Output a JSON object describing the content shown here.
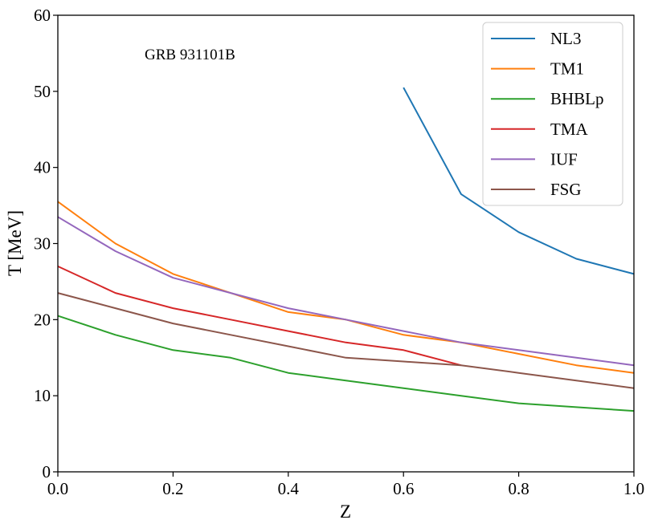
{
  "chart_data": {
    "type": "line",
    "title": "",
    "annotation": "GRB 931101B",
    "xlabel": "Z",
    "ylabel": "T [MeV]",
    "xlim": [
      0.0,
      1.0
    ],
    "ylim": [
      0,
      60
    ],
    "xticks": [
      "0.0",
      "0.2",
      "0.4",
      "0.6",
      "0.8",
      "1.0"
    ],
    "yticks": [
      "0",
      "10",
      "20",
      "30",
      "40",
      "50",
      "60"
    ],
    "grid": false,
    "legend_position": "top-right",
    "series": [
      {
        "name": "NL3",
        "color": "#1f77b4",
        "x": [
          0.6,
          0.7,
          0.8,
          0.9,
          1.0
        ],
        "y": [
          50.5,
          36.5,
          31.5,
          28.0,
          26.0
        ]
      },
      {
        "name": "TM1",
        "color": "#ff7f0e",
        "x": [
          0.0,
          0.1,
          0.2,
          0.3,
          0.4,
          0.5,
          0.6,
          0.7,
          0.8,
          0.9,
          1.0
        ],
        "y": [
          35.5,
          30.0,
          26.0,
          23.5,
          21.0,
          20.0,
          18.0,
          17.0,
          15.5,
          14.0,
          13.0
        ]
      },
      {
        "name": "BHBLp",
        "color": "#2ca02c",
        "x": [
          0.0,
          0.1,
          0.2,
          0.3,
          0.4,
          0.5,
          0.6,
          0.7,
          0.8,
          0.9,
          1.0
        ],
        "y": [
          20.5,
          18.0,
          16.0,
          15.0,
          13.0,
          12.0,
          11.0,
          10.0,
          9.0,
          8.5,
          8.0
        ]
      },
      {
        "name": "TMA",
        "color": "#d62728",
        "x": [
          0.0,
          0.1,
          0.2,
          0.3,
          0.4,
          0.5,
          0.6,
          0.7
        ],
        "y": [
          27.0,
          23.5,
          21.5,
          20.0,
          18.5,
          17.0,
          16.0,
          14.0
        ]
      },
      {
        "name": "IUF",
        "color": "#9467bd",
        "x": [
          0.0,
          0.1,
          0.2,
          0.3,
          0.4,
          0.5,
          0.6,
          0.7,
          0.8,
          0.9,
          1.0
        ],
        "y": [
          33.5,
          29.0,
          25.5,
          23.5,
          21.5,
          20.0,
          18.5,
          17.0,
          16.0,
          15.0,
          14.0
        ]
      },
      {
        "name": "FSG",
        "color": "#8c564b",
        "x": [
          0.0,
          0.1,
          0.2,
          0.3,
          0.4,
          0.5,
          0.6,
          0.7,
          0.8,
          0.9,
          1.0
        ],
        "y": [
          23.5,
          21.5,
          19.5,
          18.0,
          16.5,
          15.0,
          14.5,
          14.0,
          13.0,
          12.0,
          11.0
        ]
      }
    ]
  }
}
